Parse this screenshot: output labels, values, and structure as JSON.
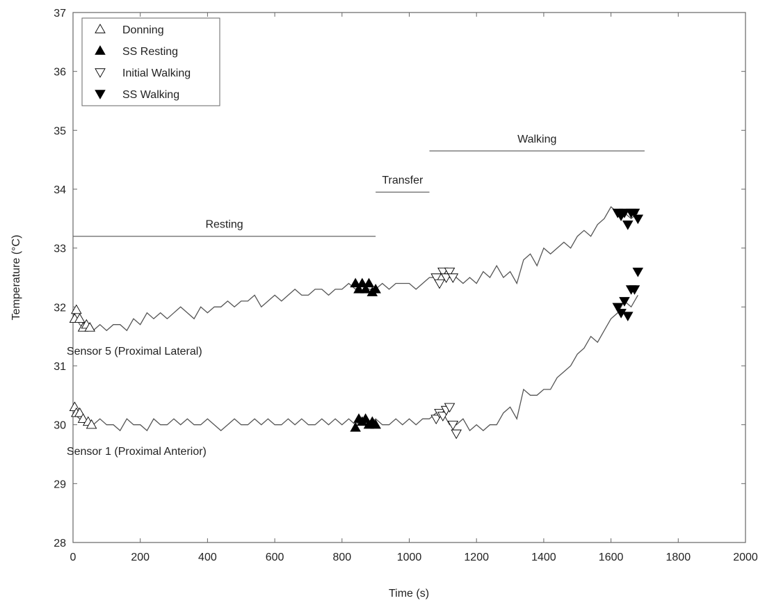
{
  "chart_data": {
    "type": "line",
    "xlabel": "Time (s)",
    "ylabel": "Temperature (°C)",
    "xlim": [
      0,
      2000
    ],
    "ylim": [
      28,
      37
    ],
    "xticks": [
      0,
      200,
      400,
      600,
      800,
      1000,
      1200,
      1400,
      1600,
      1800,
      2000
    ],
    "yticks": [
      28,
      29,
      30,
      31,
      32,
      33,
      34,
      35,
      36,
      37
    ],
    "grid": false,
    "legend_position": "top-left",
    "legend": [
      {
        "label": "Donning",
        "marker": "triangle-up-open"
      },
      {
        "label": "SS Resting",
        "marker": "triangle-up-filled"
      },
      {
        "label": "Initial Walking",
        "marker": "triangle-down-open"
      },
      {
        "label": "SS Walking",
        "marker": "triangle-down-filled"
      }
    ],
    "phases": [
      {
        "label": "Resting",
        "x_start": 0,
        "x_end": 900,
        "y": 33.2
      },
      {
        "label": "Transfer",
        "x_start": 900,
        "x_end": 1060,
        "y": 33.95
      },
      {
        "label": "Walking",
        "x_start": 1060,
        "x_end": 1700,
        "y": 34.65
      }
    ],
    "series": [
      {
        "name": "Sensor 5 (Proximal Lateral)",
        "label_position": {
          "x": 95,
          "y": 31.25
        },
        "x": [
          0,
          20,
          40,
          60,
          80,
          100,
          120,
          140,
          160,
          180,
          200,
          220,
          240,
          260,
          280,
          300,
          320,
          340,
          360,
          380,
          400,
          420,
          440,
          460,
          480,
          500,
          520,
          540,
          560,
          580,
          600,
          620,
          640,
          660,
          680,
          700,
          720,
          740,
          760,
          780,
          800,
          820,
          840,
          860,
          880,
          900,
          920,
          940,
          960,
          980,
          1000,
          1020,
          1040,
          1060,
          1080,
          1100,
          1120,
          1140,
          1160,
          1180,
          1200,
          1220,
          1240,
          1260,
          1280,
          1300,
          1320,
          1340,
          1360,
          1380,
          1400,
          1420,
          1440,
          1460,
          1480,
          1500,
          1520,
          1540,
          1560,
          1580,
          1600,
          1620,
          1640,
          1660,
          1680
        ],
        "values": [
          31.9,
          31.7,
          31.6,
          31.6,
          31.7,
          31.6,
          31.7,
          31.7,
          31.6,
          31.8,
          31.7,
          31.9,
          31.8,
          31.9,
          31.8,
          31.9,
          32.0,
          31.9,
          31.8,
          32.0,
          31.9,
          32.0,
          32.0,
          32.1,
          32.0,
          32.1,
          32.1,
          32.2,
          32.0,
          32.1,
          32.2,
          32.1,
          32.2,
          32.3,
          32.2,
          32.2,
          32.3,
          32.3,
          32.2,
          32.3,
          32.3,
          32.4,
          32.3,
          32.4,
          32.3,
          32.3,
          32.4,
          32.3,
          32.4,
          32.4,
          32.4,
          32.3,
          32.4,
          32.5,
          32.5,
          32.6,
          32.5,
          32.5,
          32.4,
          32.5,
          32.4,
          32.6,
          32.5,
          32.7,
          32.5,
          32.6,
          32.4,
          32.8,
          32.9,
          32.7,
          33.0,
          32.9,
          33.0,
          33.1,
          33.0,
          33.2,
          33.3,
          33.2,
          33.4,
          33.5,
          33.7,
          33.6,
          33.6,
          33.5,
          33.6
        ],
        "markers": [
          {
            "type": "Donning",
            "points": [
              [
                5,
                31.8
              ],
              [
                10,
                31.95
              ],
              [
                20,
                31.8
              ],
              [
                30,
                31.65
              ],
              [
                40,
                31.7
              ],
              [
                50,
                31.65
              ]
            ]
          },
          {
            "type": "SS Resting",
            "points": [
              [
                840,
                32.4
              ],
              [
                850,
                32.3
              ],
              [
                860,
                32.4
              ],
              [
                870,
                32.3
              ],
              [
                880,
                32.4
              ],
              [
                890,
                32.25
              ],
              [
                900,
                32.3
              ]
            ]
          },
          {
            "type": "Initial Walking",
            "points": [
              [
                1080,
                32.5
              ],
              [
                1090,
                32.4
              ],
              [
                1100,
                32.6
              ],
              [
                1110,
                32.5
              ],
              [
                1120,
                32.6
              ],
              [
                1130,
                32.5
              ]
            ]
          },
          {
            "type": "SS Walking",
            "points": [
              [
                1620,
                33.6
              ],
              [
                1630,
                33.55
              ],
              [
                1640,
                33.6
              ],
              [
                1650,
                33.4
              ],
              [
                1660,
                33.6
              ],
              [
                1670,
                33.6
              ],
              [
                1680,
                33.5
              ]
            ]
          }
        ]
      },
      {
        "name": "Sensor 1 (Proximal Anterior)",
        "label_position": {
          "x": 95,
          "y": 29.55
        },
        "x": [
          0,
          20,
          40,
          60,
          80,
          100,
          120,
          140,
          160,
          180,
          200,
          220,
          240,
          260,
          280,
          300,
          320,
          340,
          360,
          380,
          400,
          420,
          440,
          460,
          480,
          500,
          520,
          540,
          560,
          580,
          600,
          620,
          640,
          660,
          680,
          700,
          720,
          740,
          760,
          780,
          800,
          820,
          840,
          860,
          880,
          900,
          920,
          940,
          960,
          980,
          1000,
          1020,
          1040,
          1060,
          1080,
          1100,
          1120,
          1140,
          1160,
          1180,
          1200,
          1220,
          1240,
          1260,
          1280,
          1300,
          1320,
          1340,
          1360,
          1380,
          1400,
          1420,
          1440,
          1460,
          1480,
          1500,
          1520,
          1540,
          1560,
          1580,
          1600,
          1620,
          1640,
          1660,
          1680
        ],
        "values": [
          30.2,
          30.1,
          30.0,
          30.0,
          30.1,
          30.0,
          30.0,
          29.9,
          30.1,
          30.0,
          30.0,
          29.9,
          30.1,
          30.0,
          30.0,
          30.1,
          30.0,
          30.1,
          30.0,
          30.0,
          30.1,
          30.0,
          29.9,
          30.0,
          30.1,
          30.0,
          30.0,
          30.1,
          30.0,
          30.1,
          30.0,
          30.0,
          30.1,
          30.0,
          30.1,
          30.0,
          30.0,
          30.1,
          30.0,
          30.1,
          30.0,
          30.1,
          30.0,
          30.1,
          30.0,
          30.1,
          30.0,
          30.0,
          30.1,
          30.0,
          30.1,
          30.0,
          30.1,
          30.1,
          30.2,
          30.2,
          30.0,
          30.0,
          30.1,
          29.9,
          30.0,
          29.9,
          30.0,
          30.0,
          30.2,
          30.3,
          30.1,
          30.6,
          30.5,
          30.5,
          30.6,
          30.6,
          30.8,
          30.9,
          31.0,
          31.2,
          31.3,
          31.5,
          31.4,
          31.6,
          31.8,
          31.9,
          32.1,
          32.0,
          32.2
        ],
        "markers": [
          {
            "type": "Donning",
            "points": [
              [
                5,
                30.3
              ],
              [
                10,
                30.2
              ],
              [
                20,
                30.2
              ],
              [
                30,
                30.1
              ],
              [
                45,
                30.05
              ],
              [
                55,
                30.0
              ]
            ]
          },
          {
            "type": "SS Resting",
            "points": [
              [
                840,
                29.95
              ],
              [
                850,
                30.1
              ],
              [
                860,
                30.05
              ],
              [
                870,
                30.1
              ],
              [
                880,
                30.0
              ],
              [
                890,
                30.05
              ],
              [
                900,
                30.0
              ]
            ]
          },
          {
            "type": "Initial Walking",
            "points": [
              [
                1080,
                30.1
              ],
              [
                1090,
                30.2
              ],
              [
                1100,
                30.15
              ],
              [
                1110,
                30.25
              ],
              [
                1120,
                30.3
              ],
              [
                1130,
                30.0
              ],
              [
                1140,
                29.85
              ]
            ]
          },
          {
            "type": "SS Walking",
            "points": [
              [
                1620,
                32.0
              ],
              [
                1630,
                31.9
              ],
              [
                1640,
                32.1
              ],
              [
                1650,
                31.85
              ],
              [
                1660,
                32.3
              ],
              [
                1670,
                32.3
              ],
              [
                1680,
                32.6
              ]
            ]
          }
        ]
      }
    ]
  }
}
